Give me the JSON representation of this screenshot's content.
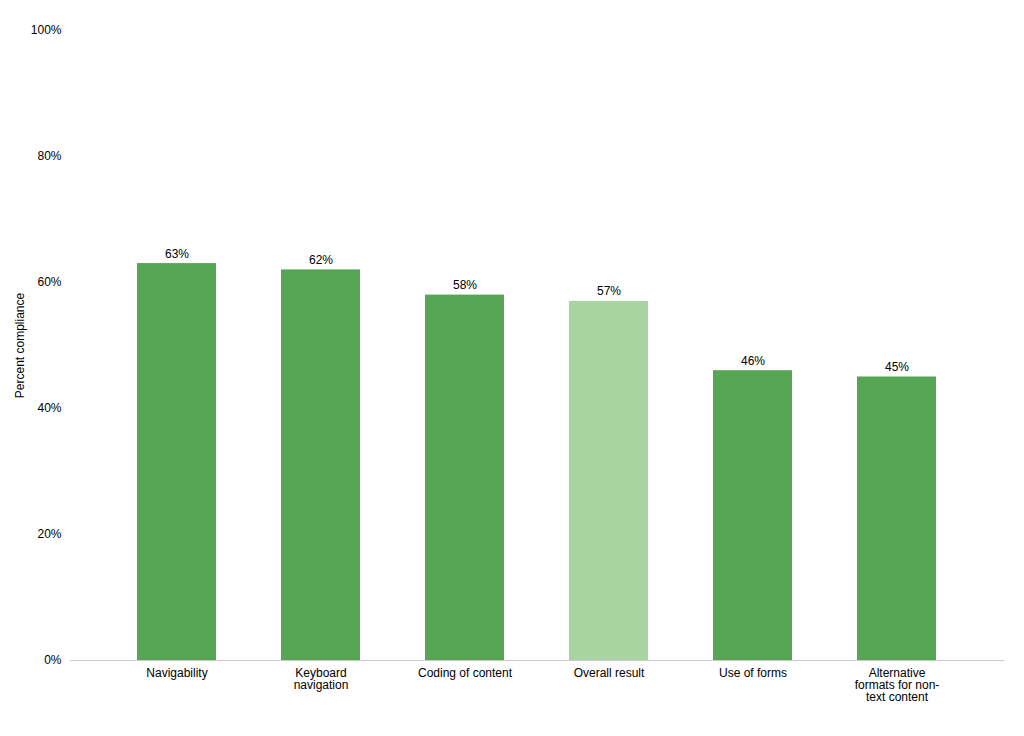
{
  "chart_data": {
    "type": "bar",
    "categories": [
      "Navigability",
      "Keyboard\nnavigation",
      "Coding of content",
      "Overall result",
      "Use of forms",
      "Alternative\nformats for non-\ntext content"
    ],
    "values": [
      63,
      62,
      58,
      57,
      46,
      45
    ],
    "value_labels": [
      "63%",
      "62%",
      "58%",
      "57%",
      "46%",
      "45%"
    ],
    "colors": [
      "#55a555",
      "#55a555",
      "#55a555",
      "#a8d4a0",
      "#55a555",
      "#55a555"
    ],
    "ylabel": "Percent compliance",
    "ylim": [
      0,
      100
    ],
    "yticks": [
      {
        "value": 0,
        "label": "0%"
      },
      {
        "value": 20,
        "label": "20%"
      },
      {
        "value": 40,
        "label": "40%"
      },
      {
        "value": 60,
        "label": "60%"
      },
      {
        "value": 80,
        "label": "80%"
      },
      {
        "value": 100,
        "label": "100%"
      }
    ],
    "grid": false,
    "data_labels": true
  }
}
